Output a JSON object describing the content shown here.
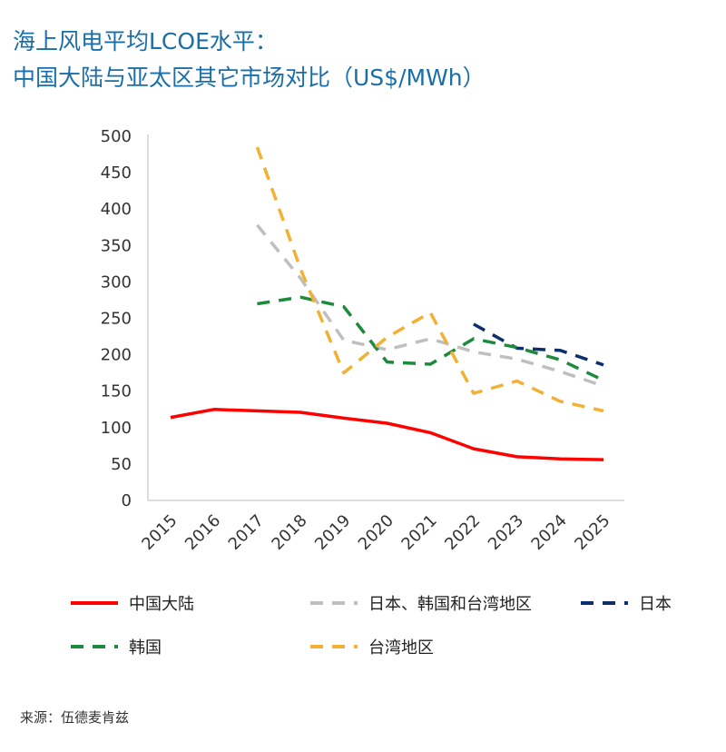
{
  "title": {
    "line1": "海上风电平均LCOE水平：",
    "line2": "中国大陆与亚太区其它市场对比（US$/MWh）"
  },
  "source": "来源：伍德麦肯兹",
  "chart_data": {
    "type": "line",
    "title": "海上风电平均LCOE水平：中国大陆与亚太区其它市场对比（US$/MWh）",
    "xlabel": "",
    "ylabel": "",
    "ylim": [
      0,
      500
    ],
    "yticks": [
      0,
      50,
      100,
      150,
      200,
      250,
      300,
      350,
      400,
      450,
      500
    ],
    "grid": false,
    "legend_position": "bottom",
    "categories": [
      "2015",
      "2016",
      "2017",
      "2018",
      "2019",
      "2020",
      "2021",
      "2022",
      "2023",
      "2024",
      "2025"
    ],
    "series": [
      {
        "name": "中国大陆",
        "color": "#ff0000",
        "dash": "solid",
        "values": [
          114,
          125,
          123,
          121,
          113,
          106,
          93,
          71,
          60,
          57,
          56
        ]
      },
      {
        "name": "日本、韩国和台湾地区",
        "color": "#bfbfbf",
        "dash": "dashed",
        "values": [
          null,
          null,
          378,
          305,
          220,
          207,
          222,
          204,
          194,
          177,
          157
        ]
      },
      {
        "name": "日本",
        "color": "#0d2f6e",
        "dash": "dashed",
        "values": [
          null,
          null,
          null,
          null,
          null,
          null,
          null,
          242,
          209,
          206,
          186
        ]
      },
      {
        "name": "韩国",
        "color": "#1e8a3c",
        "dash": "dashed",
        "values": [
          null,
          null,
          270,
          279,
          266,
          190,
          187,
          222,
          210,
          193,
          165
        ]
      },
      {
        "name": "台湾地区",
        "color": "#f2b134",
        "dash": "dashed",
        "values": [
          null,
          null,
          485,
          318,
          175,
          224,
          258,
          147,
          164,
          136,
          123
        ]
      }
    ]
  }
}
